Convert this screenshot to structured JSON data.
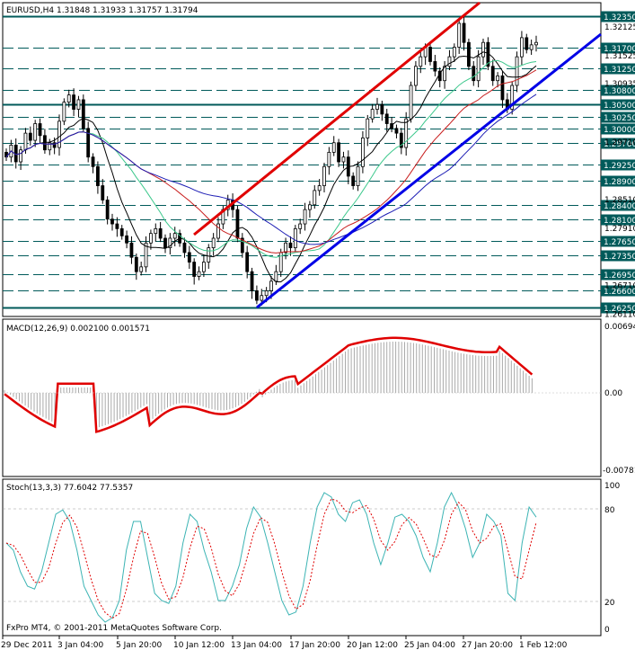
{
  "header": {
    "symbol_line": "EURUSD,H4  1.31848 1.31933 1.31757 1.31794"
  },
  "macd": {
    "label": "MACD(12,26,9) 0.002100 0.001571",
    "scale": [
      "0.00694",
      "0.00",
      "-0.00781"
    ]
  },
  "stoch": {
    "label": "Stoch(13,3,3) 77.6042 77.5357",
    "scale": [
      "100",
      "80",
      "20",
      "0"
    ]
  },
  "footer": {
    "copyright": "FxPro MT4, © 2001-2011 MetaQuotes Software Corp."
  },
  "xaxis": [
    "29 Dec 2011",
    "3 Jan 04:00",
    "5 Jan 20:00",
    "10 Jan 12:00",
    "13 Jan 04:00",
    "17 Jan 20:00",
    "20 Jan 12:00",
    "25 Jan 04:00",
    "27 Jan 20:00",
    "1 Feb 12:00"
  ],
  "price_levels": [
    {
      "label": "1.32350",
      "boxed": true
    },
    {
      "label": "1.31700",
      "boxed": true
    },
    {
      "label": "1.31250",
      "boxed": true
    },
    {
      "label": "1.30800",
      "boxed": true
    },
    {
      "label": "1.30500",
      "boxed": true
    },
    {
      "label": "1.30250",
      "boxed": true
    },
    {
      "label": "1.30000",
      "boxed": true
    },
    {
      "label": "1.29700",
      "boxed": true
    },
    {
      "label": "1.29250",
      "boxed": true
    },
    {
      "label": "1.28900",
      "boxed": true
    },
    {
      "label": "1.28400",
      "boxed": true
    },
    {
      "label": "1.28100",
      "boxed": true
    },
    {
      "label": "1.27650",
      "boxed": true
    },
    {
      "label": "1.27350",
      "boxed": true
    },
    {
      "label": "1.26950",
      "boxed": true
    },
    {
      "label": "1.26600",
      "boxed": true
    },
    {
      "label": "1.26250",
      "boxed": true
    }
  ],
  "price_ticks": [
    "1.32125",
    "1.31525",
    "1.30935",
    "1.29710",
    "1.28510",
    "1.27910",
    "1.26710",
    "1.26110"
  ],
  "colors": {
    "trend_up": "#e00000",
    "trend_low": "#0000e6",
    "level": "#005a5a",
    "ma_black": "#000000",
    "ma_navy": "#1c1cb4",
    "ma_red": "#c81e1e",
    "ma_green": "#3cc88c",
    "macd_signal": "#e00000",
    "stoch_main": "#3cb4b4",
    "stoch_signal": "#e00000"
  }
}
